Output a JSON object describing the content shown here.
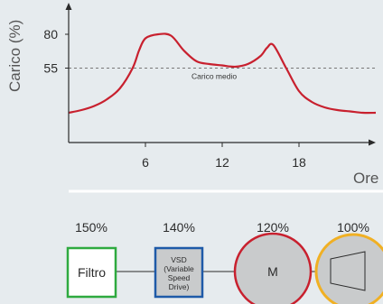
{
  "chart_data": {
    "type": "line",
    "ylabel": "Carico (%)",
    "xlabel": "Ore",
    "x_ticks": [
      6,
      12,
      18
    ],
    "y_ticks": [
      55,
      80
    ],
    "xlim": [
      0,
      24
    ],
    "ylim": [
      0,
      100
    ],
    "reference_line": {
      "value": 55,
      "label": "Carico medio",
      "style": "dashed"
    },
    "series": [
      {
        "color": "#c8202e",
        "x": [
          0,
          1,
          2,
          3,
          4,
          5,
          5.5,
          6,
          7,
          8,
          9,
          10,
          11,
          12,
          13,
          14,
          15,
          15.5,
          16,
          17,
          18,
          19,
          20,
          21,
          22,
          23,
          24
        ],
        "y": [
          22,
          24,
          27,
          32,
          40,
          55,
          68,
          77,
          80,
          79,
          68,
          60,
          58,
          57,
          56,
          58,
          64,
          70,
          72,
          55,
          38,
          30,
          26,
          24,
          23,
          22,
          22
        ]
      }
    ]
  },
  "components": [
    {
      "name": "Filtro",
      "lines": [
        "Filtro"
      ],
      "percent": "150%",
      "shape": "rect",
      "color": "#2eaa3f",
      "fill": "#ffffff"
    },
    {
      "name": "VSD",
      "lines": [
        "VSD",
        "(Variable",
        "Speed",
        "Drive)"
      ],
      "percent": "140%",
      "shape": "rect",
      "color": "#1e5aa8",
      "fill": "#c9cbcc"
    },
    {
      "name": "M",
      "lines": [
        "M"
      ],
      "percent": "120%",
      "shape": "circle",
      "color": "#c8202e",
      "fill": "#c9cbcc"
    },
    {
      "name": "pump",
      "lines": [],
      "percent": "100%",
      "shape": "circle",
      "color": "#f0b024",
      "fill": "#c9cbcc"
    }
  ],
  "colors": {
    "background": "#e6ebee",
    "curve": "#c8202e",
    "axis": "#2b2b2b",
    "divider": "#ffffff"
  }
}
